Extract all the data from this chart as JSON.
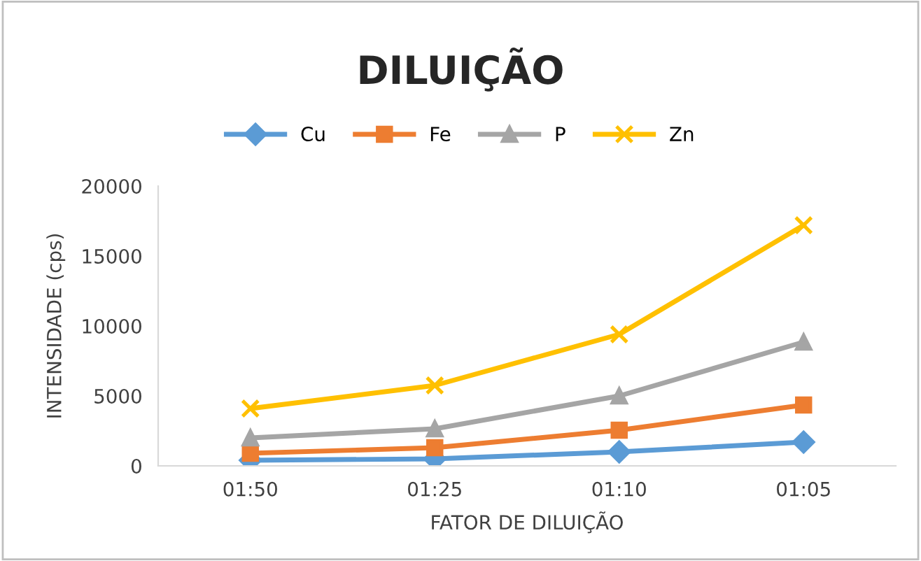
{
  "chart_data": {
    "type": "line",
    "title": "DILUIÇÃO",
    "xlabel": "FATOR DE DILUIÇÃO",
    "ylabel": "INTENSIDADE (cps)",
    "categories": [
      "01:50",
      "01:25",
      "01:10",
      "01:05"
    ],
    "series": [
      {
        "name": "Cu",
        "color": "#5b9bd5",
        "marker": "diamond",
        "values": [
          400,
          500,
          1000,
          1700
        ]
      },
      {
        "name": "Fe",
        "color": "#ed7d31",
        "marker": "square",
        "values": [
          900,
          1300,
          2550,
          4350
        ]
      },
      {
        "name": "P",
        "color": "#a5a5a5",
        "marker": "triangle",
        "values": [
          2000,
          2650,
          5000,
          8850
        ]
      },
      {
        "name": "Zn",
        "color": "#ffc000",
        "marker": "cross",
        "values": [
          4100,
          5750,
          9400,
          17200
        ]
      }
    ],
    "ylim": [
      0,
      20000
    ],
    "yticks": [
      0,
      5000,
      10000,
      15000,
      20000
    ],
    "grid": false,
    "legend": "top",
    "line_style": "solid"
  }
}
